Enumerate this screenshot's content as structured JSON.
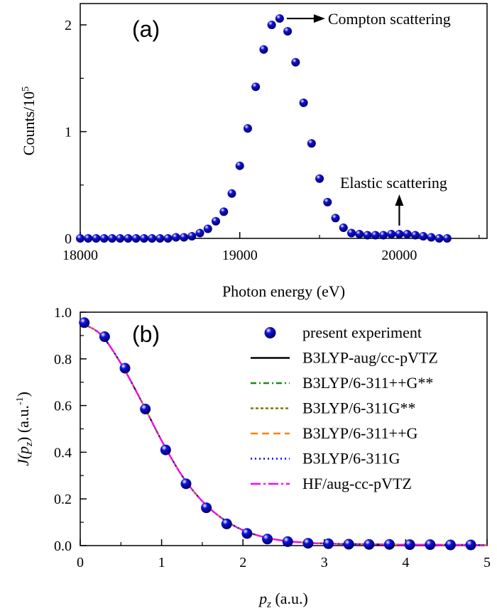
{
  "chart_data": [
    {
      "type": "scatter",
      "panel_label": "(a)",
      "xlabel": "Photon energy (eV)",
      "ylabel_main": "Counts/10",
      "ylabel_exp": "5",
      "xlim": [
        18000,
        20550
      ],
      "ylim": [
        0,
        2.2
      ],
      "xticks": [
        18000,
        19000,
        20000
      ],
      "xtick_labels": [
        "18000",
        "19000",
        "20000"
      ],
      "yticks": [
        0,
        1,
        2
      ],
      "ytick_labels": [
        "0",
        "1",
        "2"
      ],
      "grid": false,
      "marker_color": "#1010e0",
      "series": [
        {
          "x": [
            18000,
            18050,
            18100,
            18150,
            18200,
            18250,
            18300,
            18350,
            18400,
            18450,
            18500,
            18550,
            18600,
            18650,
            18700,
            18750,
            18800,
            18850,
            18900,
            18950,
            19000,
            19050,
            19100,
            19150,
            19200,
            19250,
            19300,
            19350,
            19400,
            19450,
            19500,
            19550,
            19600,
            19650,
            19700,
            19750,
            19800,
            19850,
            19900,
            19950,
            20000,
            20050,
            20100,
            20150,
            20200,
            20250,
            20300
          ],
          "y": [
            0.0,
            0.0,
            0.0,
            0.0,
            0.0,
            0.0,
            0.0,
            0.0,
            0.0,
            0.0,
            0.0,
            0.0,
            0.01,
            0.01,
            0.02,
            0.05,
            0.09,
            0.16,
            0.25,
            0.42,
            0.68,
            1.03,
            1.42,
            1.77,
            2.0,
            2.06,
            1.94,
            1.65,
            1.27,
            0.89,
            0.56,
            0.34,
            0.19,
            0.1,
            0.05,
            0.04,
            0.03,
            0.03,
            0.03,
            0.04,
            0.04,
            0.04,
            0.03,
            0.02,
            0.01,
            0.0,
            0.0
          ]
        }
      ],
      "annotations": [
        {
          "text": "Compton scattering",
          "arrow": "right",
          "target": {
            "x": 19250,
            "y": 2.06
          }
        },
        {
          "text": "Elastic scattering",
          "arrow": "up",
          "target": {
            "x": 20000,
            "y": 0.04
          }
        }
      ]
    },
    {
      "type": "line",
      "panel_label": "(b)",
      "xlabel_var": "p",
      "xlabel_sub": "z",
      "xlabel_unit": " (a.u.)",
      "ylabel_j": "J(p",
      "ylabel_sub": "z",
      "ylabel_unit": ") (a.u.",
      "ylabel_exp": "-1",
      "ylabel_close": ")",
      "xlim": [
        0,
        5
      ],
      "ylim": [
        0,
        1.0
      ],
      "xticks": [
        0,
        1,
        2,
        3,
        4,
        5
      ],
      "xtick_labels": [
        "0",
        "1",
        "2",
        "3",
        "4",
        "5"
      ],
      "yticks": [
        0,
        0.2,
        0.4,
        0.6,
        0.8,
        1.0
      ],
      "ytick_labels": [
        "0.0",
        "0.2",
        "0.4",
        "0.6",
        "0.8",
        "1.0"
      ],
      "grid": false,
      "legend_position": "top-right",
      "experiment": {
        "name": "present experiment",
        "color": "#1010e0",
        "x": [
          0.05,
          0.3,
          0.55,
          0.8,
          1.05,
          1.3,
          1.55,
          1.8,
          2.05,
          2.3,
          2.55,
          2.8,
          3.05,
          3.3,
          3.55,
          3.8,
          4.05,
          4.3,
          4.55,
          4.8
        ],
        "y": [
          0.955,
          0.895,
          0.76,
          0.585,
          0.41,
          0.265,
          0.162,
          0.093,
          0.052,
          0.028,
          0.017,
          0.01,
          0.008,
          0.006,
          0.005,
          0.005,
          0.004,
          0.004,
          0.003,
          0.003
        ]
      },
      "curve_x": [
        0.0,
        0.25,
        0.5,
        0.75,
        1.0,
        1.25,
        1.5,
        1.75,
        2.0,
        2.25,
        2.5,
        2.75,
        3.0,
        3.25,
        3.5,
        3.75,
        4.0,
        4.25,
        4.5,
        4.75,
        5.0
      ],
      "curve_y": [
        0.955,
        0.905,
        0.78,
        0.62,
        0.45,
        0.3,
        0.19,
        0.115,
        0.066,
        0.037,
        0.021,
        0.013,
        0.009,
        0.007,
        0.006,
        0.005,
        0.004,
        0.004,
        0.003,
        0.003,
        0.002
      ],
      "series": [
        {
          "name": "B3LYP-aug/cc-pVTZ",
          "color": "#000000",
          "dash": "solid"
        },
        {
          "name": "B3LYP/6-311++G**",
          "color": "#1a8a1a",
          "dash": "dashdot"
        },
        {
          "name": "B3LYP/6-311G**",
          "color": "#7a7a00",
          "dash": "short-dash"
        },
        {
          "name": "B3LYP/6-311++G",
          "color": "#ff8000",
          "dash": "dash"
        },
        {
          "name": "B3LYP/6-311G",
          "color": "#0000ff",
          "dash": "dot"
        },
        {
          "name": "HF/aug-cc-pVTZ",
          "color": "#ff00ff",
          "dash": "dashdot-long"
        }
      ]
    }
  ]
}
